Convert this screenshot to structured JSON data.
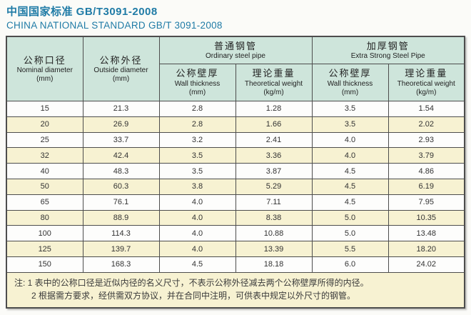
{
  "page": {
    "title_zh": "中国国家标准 GB/T3091-2008",
    "title_en": "CHINA NATIONAL STANDARD GB/T 3091-2008"
  },
  "table": {
    "header": {
      "nominal_diameter": {
        "zh": "公称口径",
        "en": "Nominal diameter",
        "unit": "(mm)"
      },
      "outside_diameter": {
        "zh": "公称外径",
        "en": "Outside diameter",
        "unit": "(mm)"
      },
      "ordinary_group": {
        "zh": "普通钢管",
        "en": "Ordinary steel pipe"
      },
      "extra_strong_group": {
        "zh": "加厚钢管",
        "en": "Extra Strong Steel Pipe"
      },
      "ordinary_wall_thickness": {
        "zh": "公称壁厚",
        "en": "Wall thickness",
        "unit": "(mm)"
      },
      "ordinary_theoretical_weight": {
        "zh": "理论重量",
        "en": "Theoretical weight",
        "unit": "(kg/m)"
      },
      "extra_wall_thickness": {
        "zh": "公称壁厚",
        "en": "Wall thickness",
        "unit": "(mm)"
      },
      "extra_theoretical_weight": {
        "zh": "理论重量",
        "en": "Theoretical weight",
        "unit": "(kg/m)"
      }
    },
    "rows": [
      [
        "15",
        "21.3",
        "2.8",
        "1.28",
        "3.5",
        "1.54"
      ],
      [
        "20",
        "26.9",
        "2.8",
        "1.66",
        "3.5",
        "2.02"
      ],
      [
        "25",
        "33.7",
        "3.2",
        "2.41",
        "4.0",
        "2.93"
      ],
      [
        "32",
        "42.4",
        "3.5",
        "3.36",
        "4.0",
        "3.79"
      ],
      [
        "40",
        "48.3",
        "3.5",
        "3.87",
        "4.5",
        "4.86"
      ],
      [
        "50",
        "60.3",
        "3.8",
        "5.29",
        "4.5",
        "6.19"
      ],
      [
        "65",
        "76.1",
        "4.0",
        "7.11",
        "4.5",
        "7.95"
      ],
      [
        "80",
        "88.9",
        "4.0",
        "8.38",
        "5.0",
        "10.35"
      ],
      [
        "100",
        "114.3",
        "4.0",
        "10.88",
        "5.0",
        "13.48"
      ],
      [
        "125",
        "139.7",
        "4.0",
        "13.39",
        "5.5",
        "18.20"
      ],
      [
        "150",
        "168.3",
        "4.5",
        "18.18",
        "6.0",
        "24.02"
      ]
    ],
    "notes": [
      "注: 1 表中的公称口径是近似内径的名义尺寸，不表示公称外径减去两个公称壁厚所得的内径。",
      "2 根据需方要求，经供需双方协议，并在合同中注明，可供表中规定以外尺寸的钢管。"
    ]
  },
  "colors": {
    "title_text": "#1f7ba6",
    "header_bg": "#cee5db",
    "row_white_bg": "#fdfdfc",
    "row_cream_bg": "#f7f2d2",
    "notes_bg": "#f7f2d2",
    "grid_border": "#4d4d4d"
  }
}
